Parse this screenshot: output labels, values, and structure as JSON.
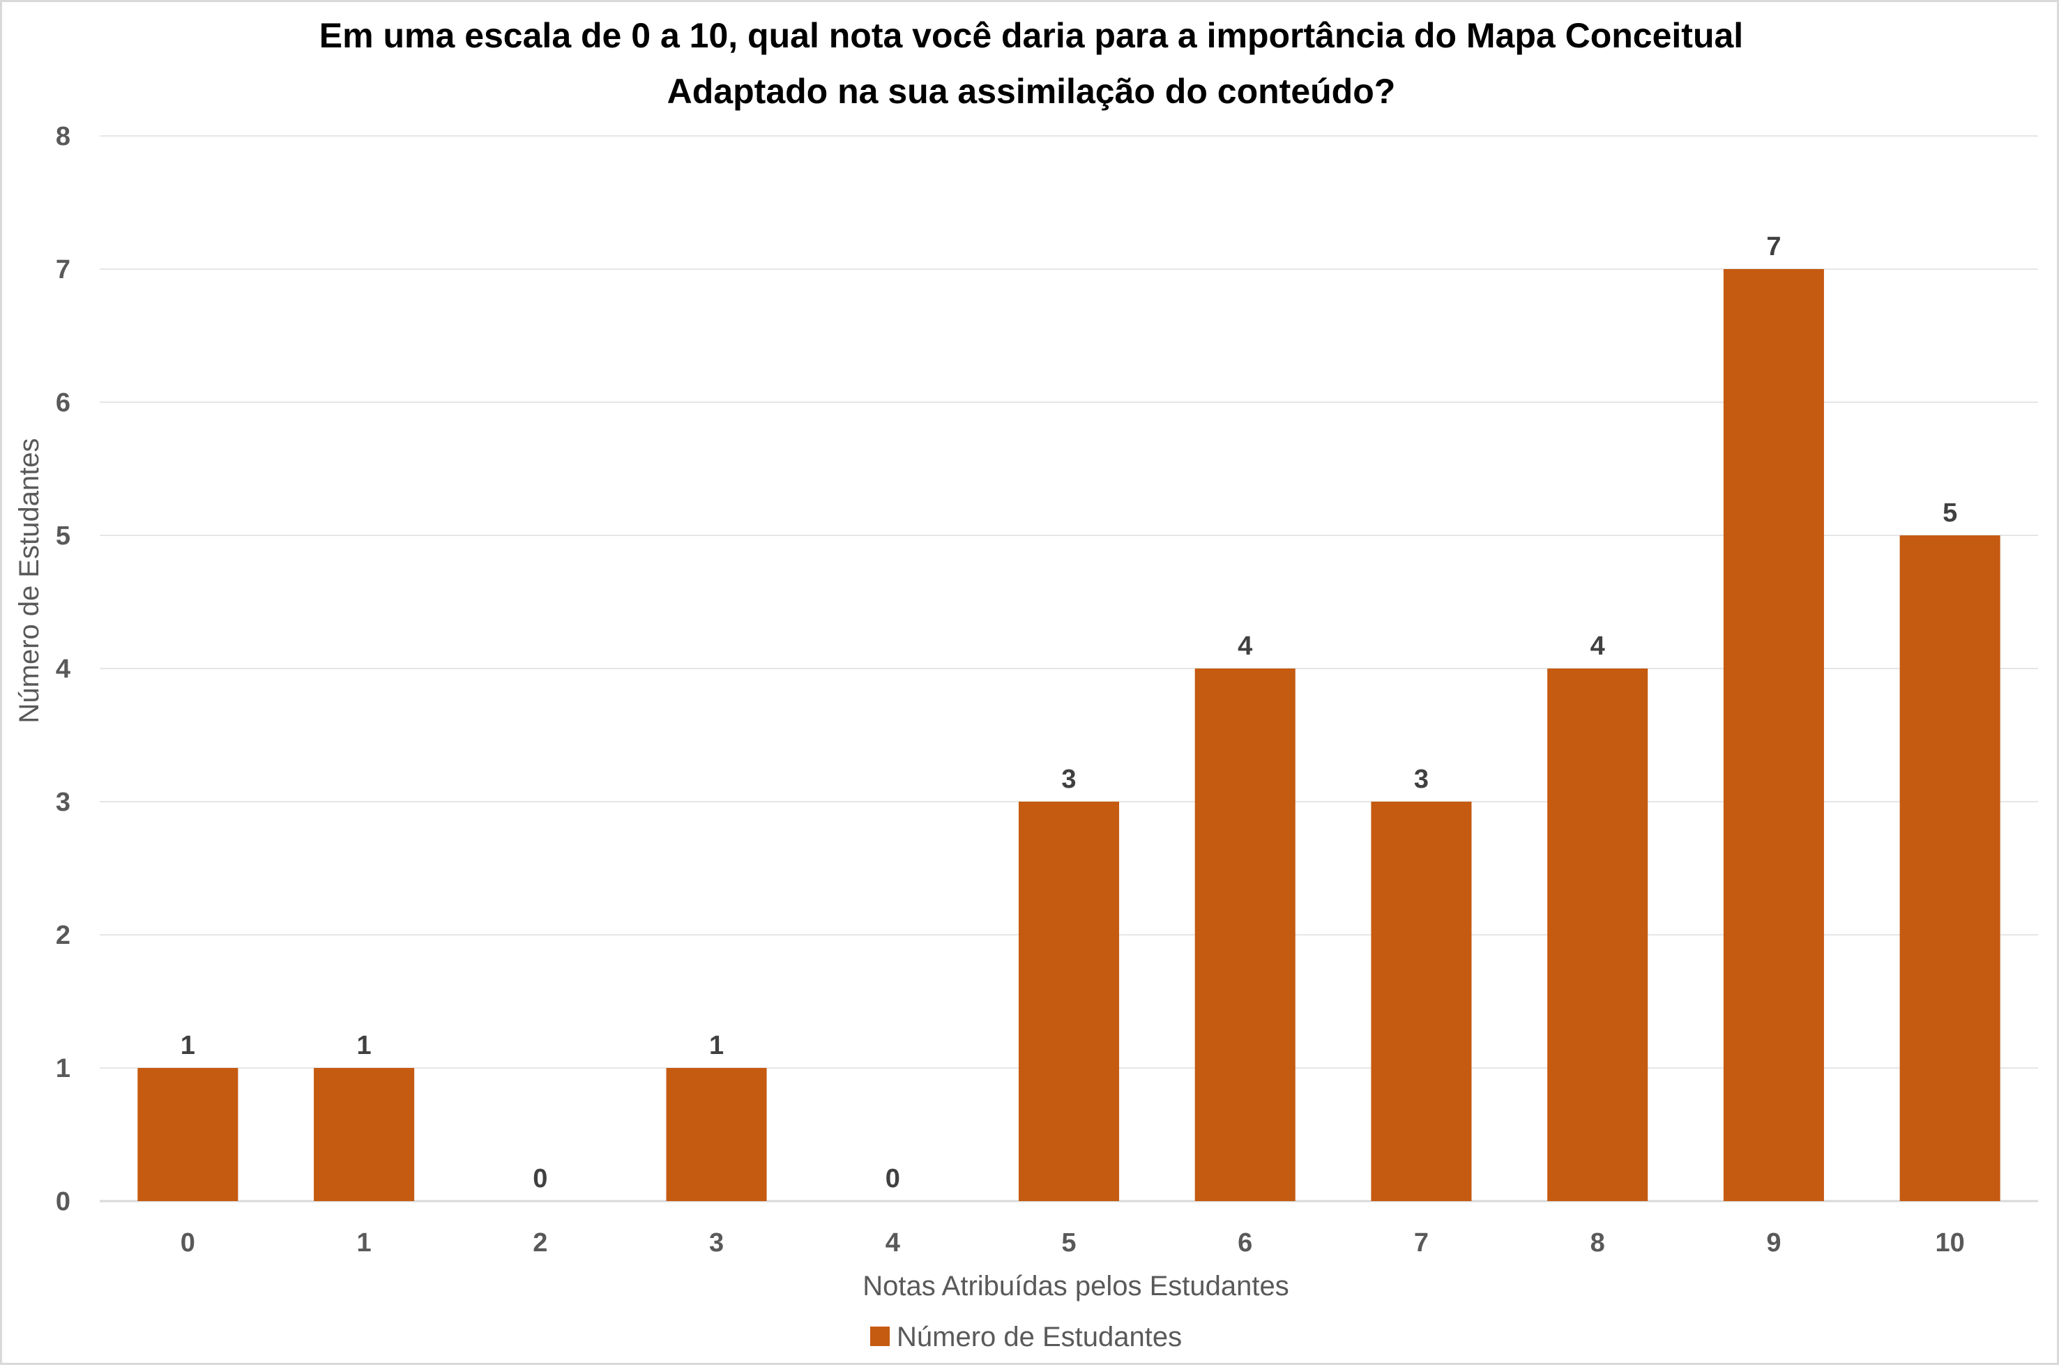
{
  "chart_data": {
    "type": "bar",
    "title": "Em uma escala de 0 a 10, qual nota você daria para a importância do Mapa Conceitual Adaptado na sua assimilação do conteúdo?",
    "title_lines": [
      "Em uma escala de 0 a 10, qual nota você daria para a importância do Mapa Conceitual",
      "Adaptado na sua assimilação do conteúdo?"
    ],
    "xlabel": "Notas Atribuídas pelos Estudantes",
    "ylabel": "Número de Estudantes",
    "categories": [
      "0",
      "1",
      "2",
      "3",
      "4",
      "5",
      "6",
      "7",
      "8",
      "9",
      "10"
    ],
    "series": [
      {
        "name": "Número de Estudantes",
        "values": [
          1,
          1,
          0,
          1,
          0,
          3,
          4,
          3,
          4,
          7,
          5
        ],
        "color": "#c55a11"
      }
    ],
    "ylim": [
      0,
      8
    ],
    "yticks": [
      "0",
      "1",
      "2",
      "3",
      "4",
      "5",
      "6",
      "7",
      "8"
    ],
    "grid": true,
    "legend_position": "bottom",
    "data_labels": true
  }
}
